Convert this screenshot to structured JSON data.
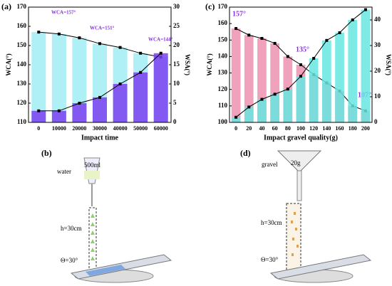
{
  "chart_data": [
    {
      "type": "bar",
      "panel": "(a)",
      "xlabel": "Impact time",
      "ylabel": "WCA(°)",
      "y2label": "WSA(°)",
      "categories": [
        "0",
        "10000",
        "20000",
        "30000",
        "40000",
        "50000",
        "60000"
      ],
      "series": [
        {
          "name": "WCA",
          "color": "#5fe0ee",
          "values": [
            157,
            156,
            154,
            151,
            149,
            146,
            144
          ]
        },
        {
          "name": "WSA",
          "color": "#7b3ff0",
          "axis": "y2",
          "values": [
            3,
            3,
            5,
            6.5,
            10,
            13,
            18
          ]
        }
      ],
      "ylim": [
        110,
        170
      ],
      "yticks": [
        110,
        120,
        130,
        140,
        150,
        160,
        170
      ],
      "y2lim": [
        0,
        30
      ],
      "y2ticks": [
        0,
        5,
        10,
        15,
        20,
        25,
        30
      ],
      "annotations": [
        "WCA=157°",
        "WCA=151°",
        "WCA=144°"
      ]
    },
    {
      "type": "bar",
      "panel": "(c)",
      "xlabel": "Impact gravel quality(g)",
      "ylabel": "WCA(°)",
      "y2label": "WSA(°)",
      "categories": [
        "0",
        "20",
        "40",
        "60",
        "80",
        "100",
        "120",
        "140",
        "160",
        "180",
        "200"
      ],
      "series": [
        {
          "name": "WCA",
          "color": "#e2457a",
          "values": [
            157,
            153,
            151,
            148,
            140,
            135,
            129,
            124,
            119,
            110,
            107
          ]
        },
        {
          "name": "WSA",
          "color": "#66e6e0",
          "axis": "y2",
          "values": [
            2,
            6,
            9,
            11,
            13,
            18,
            25,
            32,
            35,
            40,
            44
          ]
        }
      ],
      "ylim": [
        100,
        170
      ],
      "yticks": [
        100,
        110,
        120,
        130,
        140,
        150,
        160,
        170
      ],
      "y2lim": [
        0,
        45
      ],
      "y2ticks": [
        0,
        10,
        20,
        30,
        40
      ],
      "annotations": [
        "157°",
        "135°",
        "107°"
      ]
    }
  ],
  "diagrams": [
    {
      "panel": "(b)",
      "labels": [
        "water",
        "500ml",
        "h=30cm",
        "Θ=30°"
      ]
    },
    {
      "panel": "(d)",
      "labels": [
        "gravel",
        "20g",
        "h=30cm",
        "Θ=30°"
      ]
    }
  ]
}
